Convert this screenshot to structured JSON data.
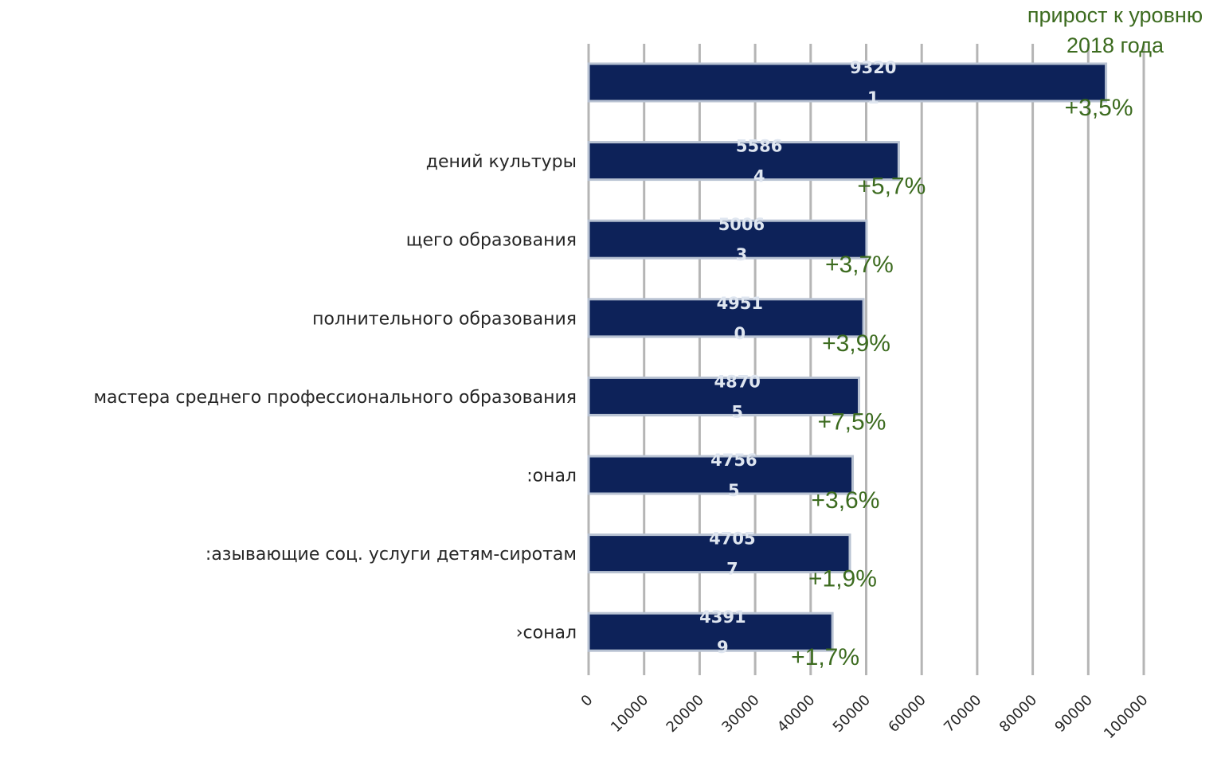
{
  "chart_data": {
    "type": "bar",
    "orientation": "horizontal",
    "header_text_lines": [
      "прирост к уровню",
      "2018 года"
    ],
    "categories": [
      "",
      "дений культуры",
      "щего образования",
      "полнительного образования",
      " мастера среднего профессионального образования",
      ":онал",
      ":азывающие соц. услуги детям-сиротам",
      "›сонал"
    ],
    "values": [
      93201,
      55864,
      50063,
      49510,
      48705,
      47565,
      47057,
      43919
    ],
    "value_label_lines": [
      [
        "9320",
        "1"
      ],
      [
        "5586",
        "4"
      ],
      [
        "5006",
        "3"
      ],
      [
        "4951",
        "0"
      ],
      [
        "4870",
        "5"
      ],
      [
        "4756",
        "5"
      ],
      [
        "4705",
        "7"
      ],
      [
        "4391",
        "9"
      ]
    ],
    "growth_labels": [
      "+3,5%",
      "+5,7%",
      "+3,7%",
      "+3,9%",
      "+7,5%",
      "+3,6%",
      "+1,9%",
      "+1,7%"
    ],
    "xlim": [
      0,
      100000
    ],
    "xticks": [
      0,
      10000,
      20000,
      30000,
      40000,
      50000,
      60000,
      70000,
      80000,
      90000,
      100000
    ],
    "xtick_labels": [
      "0",
      "10000",
      "20000",
      "30000",
      "40000",
      "50000",
      "60000",
      "70000",
      "80000",
      "90000",
      "100000"
    ],
    "grid": true,
    "bar_color": "#0d2259",
    "bar_edge_color": "#b8c2d2",
    "grid_color": "#b5b5b5",
    "growth_color": "#3c6b1f",
    "label_color": "#262626",
    "value_label_color": "#dfe6f0"
  }
}
